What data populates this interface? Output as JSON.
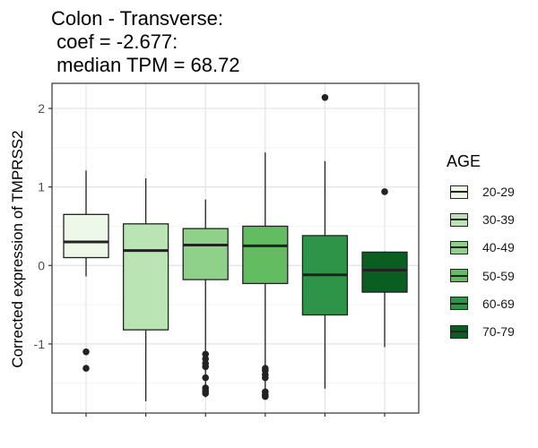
{
  "title": {
    "line1": "Colon - Transverse:",
    "line2": " coef = -2.677:",
    "line3": " median TPM = 68.72"
  },
  "chart_data": {
    "type": "box",
    "title": "Colon - Transverse:\n coef = -2.677:\n median TPM = 68.72",
    "xlabel": "",
    "ylabel": "Corrected expression of TMPRSS2",
    "ylim": [
      -1.88,
      2.32
    ],
    "yticks": [
      -1,
      0,
      1,
      2
    ],
    "grid": true,
    "legend": {
      "title": "AGE",
      "placement": "right"
    },
    "categories": [
      "20-29",
      "30-39",
      "40-49",
      "50-59",
      "60-69",
      "70-79"
    ],
    "boxes": [
      {
        "name": "20-29",
        "whisker_low": -0.14,
        "q1": 0.1,
        "median": 0.3,
        "q3": 0.65,
        "whisker_high": 1.21,
        "outliers": [
          -1.1,
          -1.31
        ],
        "color": "#edf8e9"
      },
      {
        "name": "30-39",
        "whisker_low": -1.73,
        "q1": -0.82,
        "median": 0.19,
        "q3": 0.53,
        "whisker_high": 1.11,
        "outliers": [],
        "color": "#bae4b3"
      },
      {
        "name": "40-49",
        "whisker_low": -1.68,
        "q1": -0.18,
        "median": 0.26,
        "q3": 0.47,
        "whisker_high": 0.84,
        "outliers": [
          -1.13,
          -1.19,
          -1.25,
          -1.29,
          -1.43,
          -1.56,
          -1.6,
          -1.63
        ],
        "color": "#90d18a"
      },
      {
        "name": "50-59",
        "whisker_low": -1.7,
        "q1": -0.23,
        "median": 0.25,
        "q3": 0.5,
        "whisker_high": 1.44,
        "outliers": [
          -1.31,
          -1.34,
          -1.39,
          -1.43,
          -1.61,
          -1.65,
          -1.67
        ],
        "color": "#63bc62"
      },
      {
        "name": "60-69",
        "whisker_low": -1.57,
        "q1": -0.63,
        "median": -0.12,
        "q3": 0.38,
        "whisker_high": 1.33,
        "outliers": [
          2.14
        ],
        "color": "#2e9447"
      },
      {
        "name": "70-79",
        "whisker_low": -1.04,
        "q1": -0.34,
        "median": -0.06,
        "q3": 0.17,
        "whisker_high": 0.18,
        "outliers": [
          0.94
        ],
        "color": "#0b5e22"
      }
    ]
  }
}
